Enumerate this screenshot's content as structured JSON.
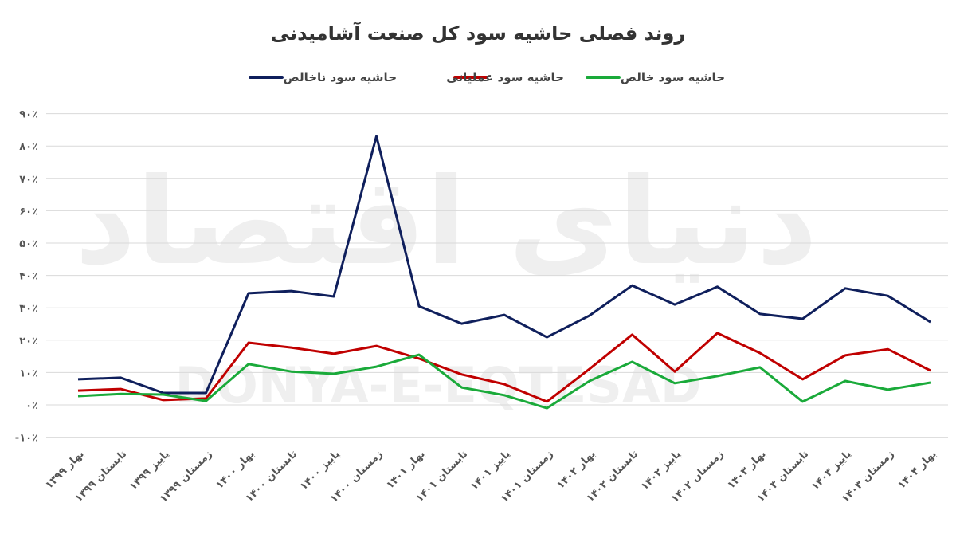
{
  "watermark": {
    "fa": "دنیای اقتصاد",
    "en": "DONYA-E-EQTESAD"
  },
  "chart_data": {
    "type": "line",
    "title": "روند فصلی حاشیه سود کل صنعت آشامیدنی",
    "xlabel": "",
    "ylabel": "",
    "ylim": [
      -10,
      90
    ],
    "yticks": [
      -10,
      0,
      10,
      20,
      30,
      40,
      50,
      60,
      70,
      80,
      90
    ],
    "ytick_labels": [
      "-۱۰٪",
      "۰٪",
      "۱۰٪",
      "۲۰٪",
      "۳۰٪",
      "۴۰٪",
      "۵۰٪",
      "۶۰٪",
      "۷۰٪",
      "۸۰٪",
      "۹۰٪"
    ],
    "grid": true,
    "legend_position": "top",
    "categories": [
      "بهار ۱۳۹۹",
      "تابستان ۱۳۹۹",
      "پاییز ۱۳۹۹",
      "زمستان ۱۳۹۹",
      "بهار ۱۴۰۰",
      "تابستان ۱۴۰۰",
      "پاییز ۱۴۰۰",
      "زمستان ۱۴۰۰",
      "بهار ۱۴۰۱",
      "تابستان ۱۴۰۱",
      "پاییز ۱۴۰۱",
      "زمستان ۱۴۰۱",
      "بهار ۱۴۰۲",
      "تابستان ۱۴۰۲",
      "پاییز ۱۴۰۲",
      "زمستان ۱۴۰۲",
      "بهار ۱۴۰۳",
      "تابستان ۱۴۰۳",
      "پاییز ۱۴۰۳",
      "زمستان ۱۴۰۳",
      "بهار ۱۴۰۴"
    ],
    "series": [
      {
        "name": "حاشیه سود ناخالص",
        "color": "#0f1f5c",
        "values": [
          7.9,
          8.4,
          3.7,
          3.7,
          34.5,
          35.2,
          33.5,
          83,
          30.5,
          25.1,
          27.8,
          20.9,
          27.6,
          36.9,
          31,
          36.5,
          28.1,
          26.6,
          36,
          33.7,
          25.6
        ]
      },
      {
        "name": "حاشیه سود عملیاتی",
        "color": "#c00000",
        "values": [
          4.4,
          4.9,
          1.5,
          2.0,
          19.2,
          17.7,
          15.8,
          18.2,
          14.3,
          9.4,
          6.4,
          1.0,
          11.1,
          21.7,
          10.3,
          22.2,
          16.0,
          7.9,
          15.3,
          17.2,
          10.6
        ]
      },
      {
        "name": "حاشیه سود خالص",
        "color": "#1aaa3a",
        "values": [
          2.7,
          3.4,
          3.2,
          1.2,
          12.6,
          10.3,
          9.6,
          11.8,
          15.5,
          5.4,
          3.0,
          -1.0,
          7.4,
          13.3,
          6.7,
          8.9,
          11.6,
          1.0,
          7.4,
          4.7,
          6.9
        ]
      }
    ]
  }
}
